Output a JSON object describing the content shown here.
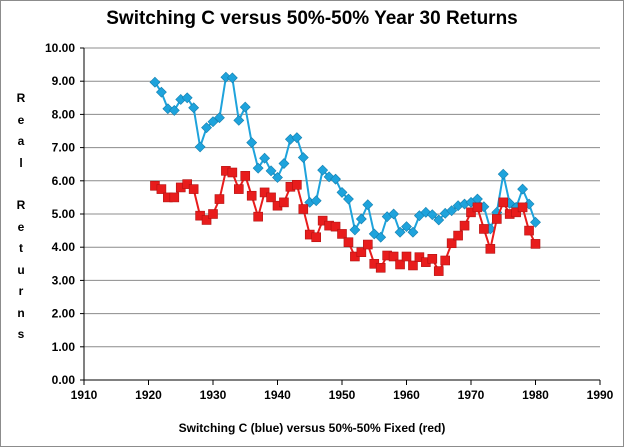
{
  "chart_data": {
    "type": "line",
    "title": "Switching C versus 50%-50% Year 30 Returns",
    "xlabel": "Switching C (blue) versus 50%-50% Fixed (red)",
    "ylabel": "Real Returns",
    "xlim": [
      1910,
      1990
    ],
    "ylim": [
      0,
      10
    ],
    "x_ticks": [
      "1910",
      "1920",
      "1930",
      "1940",
      "1950",
      "1960",
      "1970",
      "1980",
      "1990"
    ],
    "y_ticks": [
      "0.00",
      "1.00",
      "2.00",
      "3.00",
      "4.00",
      "5.00",
      "6.00",
      "7.00",
      "8.00",
      "9.00",
      "10.00"
    ],
    "grid": "horizontal",
    "x": [
      1921,
      1922,
      1923,
      1924,
      1925,
      1926,
      1927,
      1928,
      1929,
      1930,
      1931,
      1932,
      1933,
      1934,
      1935,
      1936,
      1937,
      1938,
      1939,
      1940,
      1941,
      1942,
      1943,
      1944,
      1945,
      1946,
      1947,
      1948,
      1949,
      1950,
      1951,
      1952,
      1953,
      1954,
      1955,
      1956,
      1957,
      1958,
      1959,
      1960,
      1961,
      1962,
      1963,
      1964,
      1965,
      1966,
      1967,
      1968,
      1969,
      1970,
      1971,
      1972,
      1973,
      1974,
      1975,
      1976,
      1977,
      1978,
      1979,
      1980
    ],
    "series": [
      {
        "color": "#1ea3dc",
        "marker": "diamond",
        "values": [
          8.97,
          8.67,
          8.17,
          8.12,
          8.45,
          8.5,
          8.2,
          7.02,
          7.6,
          7.78,
          7.9,
          9.12,
          9.1,
          7.82,
          8.22,
          7.15,
          6.38,
          6.68,
          6.3,
          6.1,
          6.52,
          7.25,
          7.3,
          6.7,
          5.35,
          5.4,
          6.32,
          6.12,
          6.05,
          5.65,
          5.45,
          4.52,
          4.85,
          5.28,
          4.4,
          4.3,
          4.92,
          5.0,
          4.45,
          4.62,
          4.45,
          4.95,
          5.05,
          4.98,
          4.82,
          5.02,
          5.1,
          5.25,
          5.3,
          5.35,
          5.45,
          5.22,
          4.55,
          5.05,
          6.2,
          5.32,
          5.2,
          5.75,
          5.3,
          4.75
        ]
      },
      {
        "color": "#e81c1c",
        "marker": "square",
        "values": [
          5.85,
          5.75,
          5.5,
          5.5,
          5.8,
          5.9,
          5.75,
          4.95,
          4.82,
          5.0,
          5.45,
          6.3,
          6.25,
          5.75,
          6.15,
          5.55,
          4.92,
          5.65,
          5.5,
          5.25,
          5.35,
          5.82,
          5.88,
          5.15,
          4.38,
          4.3,
          4.8,
          4.65,
          4.62,
          4.4,
          4.15,
          3.72,
          3.85,
          4.08,
          3.5,
          3.38,
          3.75,
          3.72,
          3.48,
          3.72,
          3.45,
          3.7,
          3.55,
          3.65,
          3.28,
          3.6,
          4.12,
          4.35,
          4.65,
          5.05,
          5.2,
          4.55,
          3.95,
          4.85,
          5.35,
          5.0,
          5.05,
          5.2,
          4.5,
          4.1
        ]
      }
    ]
  }
}
